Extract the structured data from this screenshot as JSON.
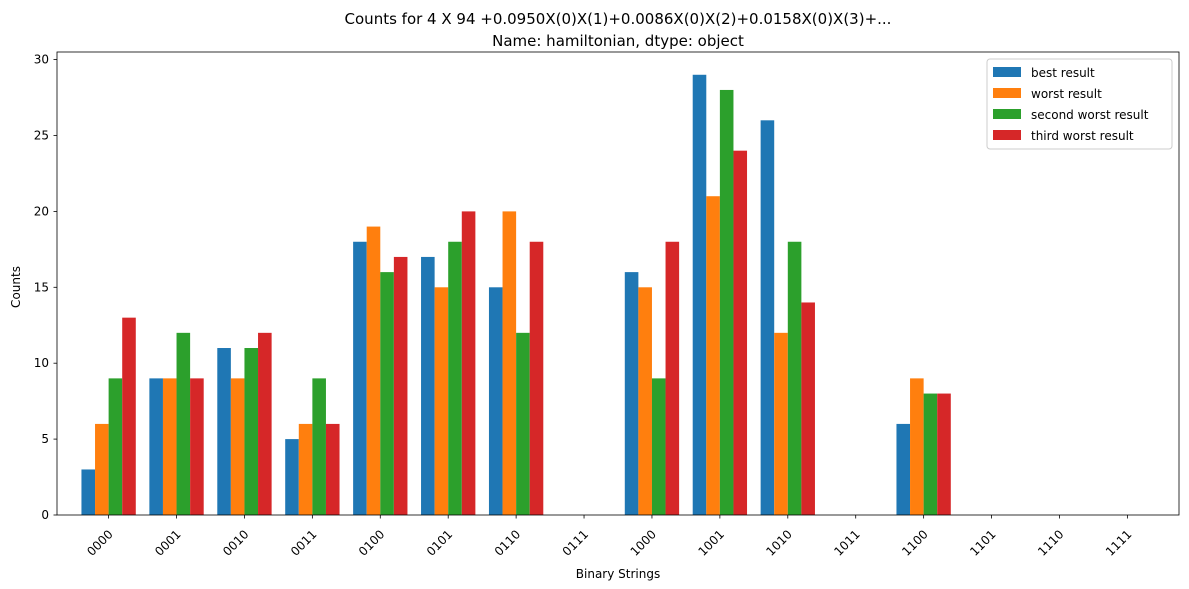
{
  "chart_data": {
    "type": "bar",
    "title": "Counts for 4 X 94    +0.0950X(0)X(1)+0.0086X(0)X(2)+0.0158X(0)X(3)+...",
    "subtitle": "Name: hamiltonian, dtype: object",
    "xlabel": "Binary Strings",
    "ylabel": "Counts",
    "ylim": [
      0,
      30.5
    ],
    "yticks": [
      0,
      5,
      10,
      15,
      20,
      25,
      30
    ],
    "categories": [
      "0000",
      "0001",
      "0010",
      "0011",
      "0100",
      "0101",
      "0110",
      "0111",
      "1000",
      "1001",
      "1010",
      "1011",
      "1100",
      "1101",
      "1110",
      "1111"
    ],
    "series": [
      {
        "name": "best result",
        "color": "#1f77b4",
        "values": [
          3,
          9,
          11,
          5,
          18,
          17,
          15,
          0,
          16,
          29,
          26,
          0,
          6,
          0,
          0,
          0
        ]
      },
      {
        "name": "worst result",
        "color": "#ff7f0e",
        "values": [
          6,
          9,
          9,
          6,
          19,
          15,
          20,
          0,
          15,
          21,
          12,
          0,
          9,
          0,
          0,
          0
        ]
      },
      {
        "name": "second worst result",
        "color": "#2ca02c",
        "values": [
          9,
          12,
          11,
          9,
          16,
          18,
          12,
          0,
          9,
          28,
          18,
          0,
          8,
          0,
          0,
          0
        ]
      },
      {
        "name": "third worst result",
        "color": "#d62728",
        "values": [
          13,
          9,
          12,
          6,
          17,
          20,
          18,
          0,
          18,
          24,
          14,
          0,
          8,
          0,
          0,
          0
        ]
      }
    ],
    "legend_position": "top-right",
    "grid": false
  }
}
